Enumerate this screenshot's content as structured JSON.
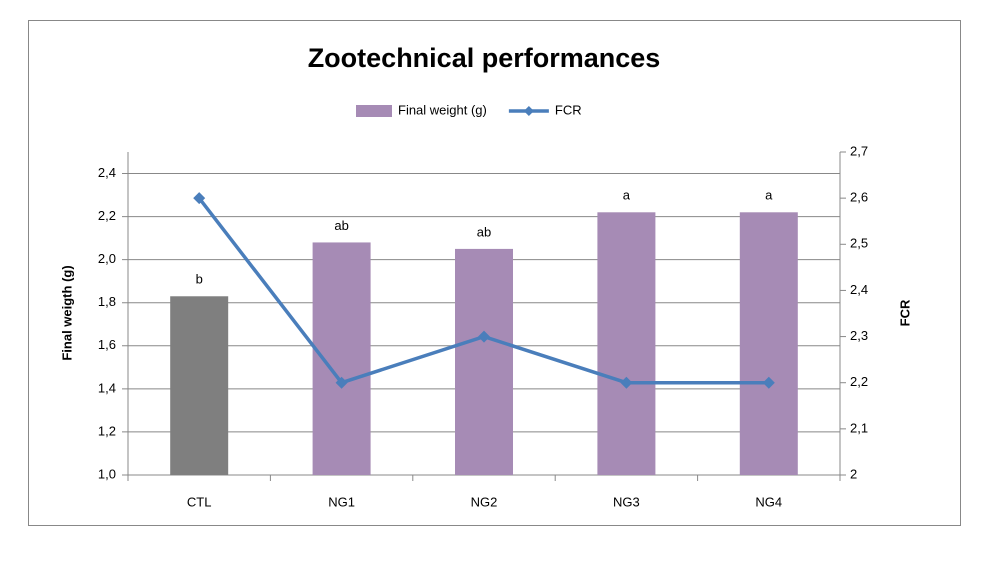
{
  "chart_data": {
    "type": "combo",
    "title": "Zootechnical performances",
    "categories": [
      "CTL",
      "NG1",
      "NG2",
      "NG3",
      "NG4"
    ],
    "series": [
      {
        "name": "Final weight (g)",
        "type": "bar",
        "color": "#a68bb5",
        "colors": [
          "#7f7f7f",
          "#a68bb5",
          "#a68bb5",
          "#a68bb5",
          "#a68bb5"
        ],
        "values": [
          1.83,
          2.08,
          2.05,
          2.22,
          2.22
        ],
        "annotations": [
          "b",
          "ab",
          "ab",
          "a",
          "a"
        ]
      },
      {
        "name": "FCR",
        "type": "line",
        "axis": "y2",
        "color": "#4a7ebb",
        "values": [
          2.6,
          2.2,
          2.3,
          2.2,
          2.2
        ]
      }
    ],
    "ylabel": "Final weigth (g)",
    "y2label": "FCR",
    "ylim": [
      1.0,
      2.5
    ],
    "yticks": [
      {
        "value": 1.0,
        "label": "1,0"
      },
      {
        "value": 1.2,
        "label": "1,2"
      },
      {
        "value": 1.4,
        "label": "1,4"
      },
      {
        "value": 1.6,
        "label": "1,6"
      },
      {
        "value": 1.8,
        "label": "1,8"
      },
      {
        "value": 2.0,
        "label": "2,0"
      },
      {
        "value": 2.2,
        "label": "2,2"
      },
      {
        "value": 2.4,
        "label": "2,4"
      }
    ],
    "y2lim": [
      2,
      2.7
    ],
    "y2ticks": [
      2,
      {
        "value": 2.1,
        "label": "2,1"
      },
      {
        "value": 2.2,
        "label": "2,2"
      },
      {
        "value": 2.3,
        "label": "2,3"
      },
      {
        "value": 2.4,
        "label": "2,4"
      },
      {
        "value": 2.5,
        "label": "2,5"
      },
      {
        "value": 2.6,
        "label": "2,6"
      },
      {
        "value": 2.7,
        "label": "2,7"
      }
    ],
    "grid": true,
    "legend": "top"
  }
}
